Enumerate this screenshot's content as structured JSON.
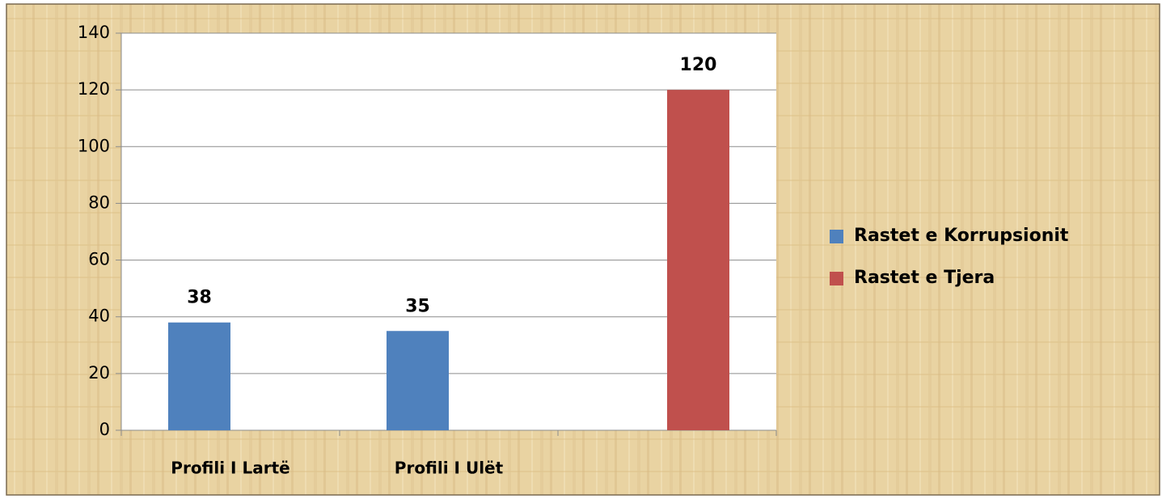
{
  "chart_data": {
    "type": "bar",
    "categories": [
      "Profili I Lartë",
      "Profili I Ulët",
      null
    ],
    "series": [
      {
        "name": "Rastet e Korrupsionit",
        "color": "#4f81bd",
        "values": [
          38,
          35,
          null
        ]
      },
      {
        "name": "Rastet e Tjera",
        "color": "#c0504d",
        "values": [
          null,
          null,
          120
        ]
      }
    ],
    "ylim": [
      0,
      140
    ],
    "yticks": [
      0,
      20,
      40,
      60,
      80,
      100,
      120,
      140
    ],
    "grid": true,
    "legend": "right"
  }
}
